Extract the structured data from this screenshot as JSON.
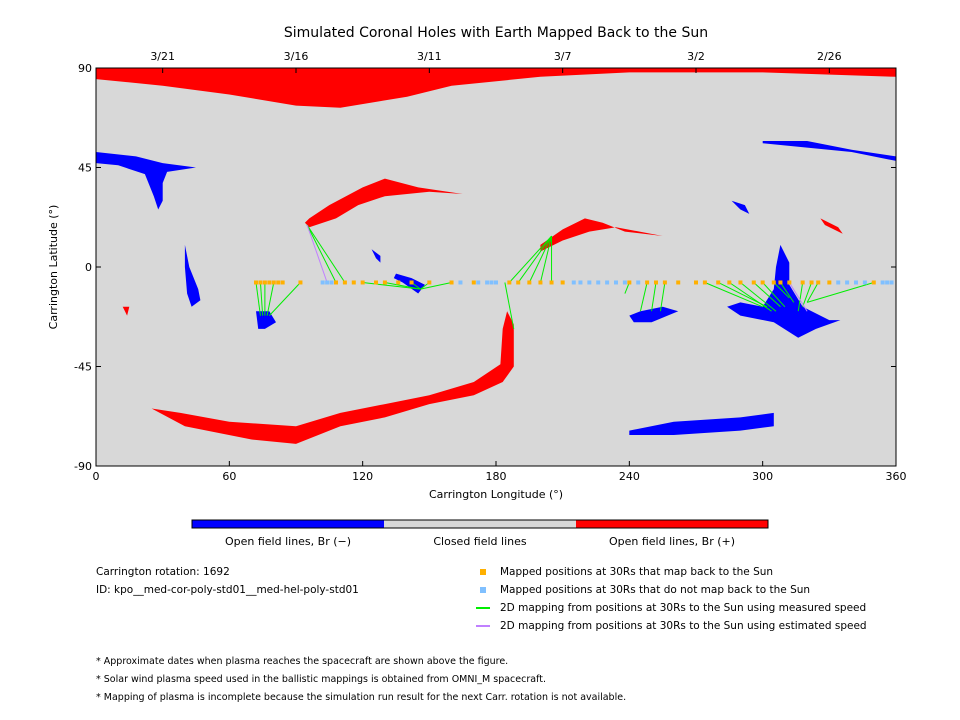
{
  "chart_data": {
    "type": "map",
    "title": "Simulated Coronal Holes with Earth Mapped Back to the Sun",
    "xlabel": "Carrington Longitude (°)",
    "ylabel": "Carrington Latitude (°)",
    "xlim": [
      0,
      360
    ],
    "ylim": [
      -90,
      90
    ],
    "xticks": [
      0,
      60,
      120,
      180,
      240,
      300,
      360
    ],
    "yticks": [
      -90,
      -45,
      0,
      45,
      90
    ],
    "top_axis_dates": [
      {
        "label": "3/21",
        "lon": 30
      },
      {
        "label": "3/16",
        "lon": 90
      },
      {
        "label": "3/11",
        "lon": 150
      },
      {
        "label": "3/7",
        "lon": 210
      },
      {
        "label": "3/2",
        "lon": 270
      },
      {
        "label": "2/26",
        "lon": 330
      }
    ],
    "background_color": "#d8d8d8",
    "colors": {
      "negative": "#0000ff",
      "positive": "#ff0000",
      "closed": "#d8d8d8",
      "mapped": "#ffb000",
      "unmapped": "#80c0ff",
      "measured": "#00ee00",
      "estimated": "#c080ff"
    },
    "regions": [
      {
        "polarity": "positive",
        "points": [
          [
            0,
            90
          ],
          [
            360,
            90
          ],
          [
            360,
            86
          ],
          [
            300,
            88
          ],
          [
            240,
            88
          ],
          [
            200,
            86
          ],
          [
            160,
            82
          ],
          [
            140,
            77
          ],
          [
            110,
            72
          ],
          [
            90,
            73
          ],
          [
            60,
            78
          ],
          [
            30,
            82
          ],
          [
            0,
            85
          ]
        ]
      },
      {
        "polarity": "negative",
        "points": [
          [
            0,
            52
          ],
          [
            18,
            50
          ],
          [
            30,
            47
          ],
          [
            45,
            45
          ],
          [
            32,
            43
          ],
          [
            30,
            38
          ],
          [
            30,
            30
          ],
          [
            28,
            26
          ],
          [
            26,
            32
          ],
          [
            22,
            42
          ],
          [
            10,
            46
          ],
          [
            0,
            47
          ]
        ]
      },
      {
        "polarity": "negative",
        "points": [
          [
            40,
            10
          ],
          [
            42,
            0
          ],
          [
            46,
            -10
          ],
          [
            47,
            -15
          ],
          [
            43,
            -18
          ],
          [
            41,
            -12
          ],
          [
            40,
            0
          ]
        ]
      },
      {
        "polarity": "negative",
        "points": [
          [
            72,
            -20
          ],
          [
            78,
            -20
          ],
          [
            81,
            -25
          ],
          [
            76,
            -28
          ],
          [
            73,
            -28
          ]
        ]
      },
      {
        "polarity": "positive",
        "points": [
          [
            12,
            -18
          ],
          [
            15,
            -18
          ],
          [
            14,
            -22
          ]
        ]
      },
      {
        "polarity": "positive",
        "points": [
          [
            96,
            22
          ],
          [
            105,
            28
          ],
          [
            120,
            36
          ],
          [
            130,
            40
          ],
          [
            145,
            36
          ],
          [
            165,
            33
          ],
          [
            150,
            34
          ],
          [
            130,
            32
          ],
          [
            118,
            28
          ],
          [
            108,
            22
          ],
          [
            96,
            18
          ],
          [
            94,
            20
          ]
        ]
      },
      {
        "polarity": "negative",
        "points": [
          [
            124,
            8
          ],
          [
            128,
            5
          ],
          [
            128,
            2
          ],
          [
            126,
            4
          ]
        ]
      },
      {
        "polarity": "negative",
        "points": [
          [
            135,
            -3
          ],
          [
            142,
            -5
          ],
          [
            148,
            -8
          ],
          [
            145,
            -12
          ],
          [
            138,
            -7
          ],
          [
            134,
            -5
          ]
        ]
      },
      {
        "polarity": "positive",
        "points": [
          [
            200,
            10
          ],
          [
            210,
            17
          ],
          [
            220,
            22
          ],
          [
            228,
            20
          ],
          [
            238,
            16
          ],
          [
            255,
            14
          ],
          [
            234,
            18
          ],
          [
            222,
            16
          ],
          [
            210,
            12
          ],
          [
            200,
            7
          ]
        ]
      },
      {
        "polarity": "positive",
        "points": [
          [
            185,
            -20
          ],
          [
            188,
            -26
          ],
          [
            188,
            -45
          ],
          [
            183,
            -52
          ],
          [
            170,
            -58
          ],
          [
            150,
            -62
          ],
          [
            130,
            -68
          ],
          [
            110,
            -72
          ],
          [
            90,
            -80
          ],
          [
            70,
            -78
          ],
          [
            40,
            -72
          ],
          [
            25,
            -64
          ],
          [
            38,
            -66
          ],
          [
            60,
            -70
          ],
          [
            90,
            -72
          ],
          [
            110,
            -66
          ],
          [
            130,
            -62
          ],
          [
            150,
            -58
          ],
          [
            170,
            -52
          ],
          [
            182,
            -44
          ],
          [
            183,
            -28
          ]
        ]
      },
      {
        "polarity": "negative",
        "points": [
          [
            240,
            -22
          ],
          [
            245,
            -20
          ],
          [
            255,
            -18
          ],
          [
            262,
            -20
          ],
          [
            250,
            -25
          ],
          [
            242,
            -25
          ]
        ]
      },
      {
        "polarity": "negative",
        "points": [
          [
            300,
            -18
          ],
          [
            305,
            -10
          ],
          [
            306,
            0
          ],
          [
            308,
            10
          ],
          [
            312,
            2
          ],
          [
            312,
            -8
          ],
          [
            318,
            -18
          ],
          [
            330,
            -24
          ],
          [
            335,
            -24
          ],
          [
            324,
            -28
          ],
          [
            316,
            -32
          ],
          [
            305,
            -25
          ],
          [
            290,
            -22
          ],
          [
            284,
            -18
          ],
          [
            290,
            -16
          ]
        ]
      },
      {
        "polarity": "negative",
        "points": [
          [
            240,
            -74
          ],
          [
            260,
            -70
          ],
          [
            290,
            -68
          ],
          [
            305,
            -66
          ],
          [
            305,
            -72
          ],
          [
            290,
            -74
          ],
          [
            260,
            -76
          ],
          [
            240,
            -76
          ]
        ]
      },
      {
        "polarity": "negative",
        "points": [
          [
            300,
            56
          ],
          [
            320,
            54
          ],
          [
            340,
            52
          ],
          [
            360,
            48
          ],
          [
            360,
            50
          ],
          [
            340,
            53
          ],
          [
            320,
            57
          ],
          [
            300,
            57
          ]
        ]
      },
      {
        "polarity": "negative",
        "points": [
          [
            286,
            30
          ],
          [
            292,
            28
          ],
          [
            294,
            24
          ],
          [
            290,
            26
          ]
        ]
      },
      {
        "polarity": "positive",
        "points": [
          [
            326,
            22
          ],
          [
            334,
            18
          ],
          [
            336,
            15
          ],
          [
            328,
            19
          ]
        ]
      }
    ],
    "mapped_lon": [
      72,
      74,
      76,
      78,
      80,
      82,
      84,
      92,
      108,
      112,
      116,
      120,
      126,
      130,
      136,
      142,
      150,
      160,
      170,
      186,
      190,
      195,
      200,
      205,
      210,
      240,
      248,
      252,
      256,
      262,
      270,
      274,
      280,
      285,
      290,
      296,
      300,
      305,
      308,
      312,
      318,
      322,
      325,
      330,
      350
    ],
    "unmapped_lon": [
      102,
      104,
      106,
      164,
      172,
      176,
      178,
      180,
      215,
      218,
      222,
      226,
      230,
      234,
      238,
      244,
      334,
      338,
      342,
      346,
      354,
      356,
      358
    ],
    "mapped_lat": -7,
    "flow_lines": [
      {
        "type": "measured",
        "from": [
          72,
          -7
        ],
        "to": [
          74,
          -22
        ]
      },
      {
        "type": "measured",
        "from": [
          74,
          -7
        ],
        "to": [
          75,
          -22
        ]
      },
      {
        "type": "measured",
        "from": [
          76,
          -7
        ],
        "to": [
          76,
          -22
        ]
      },
      {
        "type": "measured",
        "from": [
          80,
          -7
        ],
        "to": [
          77,
          -22
        ]
      },
      {
        "type": "measured",
        "from": [
          92,
          -7
        ],
        "to": [
          78,
          -22
        ]
      },
      {
        "type": "measured",
        "from": [
          108,
          -7
        ],
        "to": [
          95,
          19
        ]
      },
      {
        "type": "measured",
        "from": [
          112,
          -7
        ],
        "to": [
          95,
          19
        ]
      },
      {
        "type": "estimated",
        "from": [
          104,
          -7
        ],
        "to": [
          95,
          19
        ]
      },
      {
        "type": "measured",
        "from": [
          120,
          -7
        ],
        "to": [
          146,
          -10
        ]
      },
      {
        "type": "measured",
        "from": [
          130,
          -7
        ],
        "to": [
          146,
          -10
        ]
      },
      {
        "type": "measured",
        "from": [
          142,
          -7
        ],
        "to": [
          146,
          -10
        ]
      },
      {
        "type": "measured",
        "from": [
          150,
          -7
        ],
        "to": [
          146,
          -10
        ]
      },
      {
        "type": "measured",
        "from": [
          160,
          -7
        ],
        "to": [
          146,
          -10
        ]
      },
      {
        "type": "measured",
        "from": [
          186,
          -7
        ],
        "to": [
          205,
          14
        ]
      },
      {
        "type": "measured",
        "from": [
          190,
          -7
        ],
        "to": [
          205,
          14
        ]
      },
      {
        "type": "measured",
        "from": [
          195,
          -7
        ],
        "to": [
          205,
          14
        ]
      },
      {
        "type": "measured",
        "from": [
          200,
          -7
        ],
        "to": [
          205,
          14
        ]
      },
      {
        "type": "measured",
        "from": [
          205,
          -7
        ],
        "to": [
          205,
          14
        ]
      },
      {
        "type": "measured",
        "from": [
          184,
          -7
        ],
        "to": [
          188,
          -28
        ]
      },
      {
        "type": "measured",
        "from": [
          240,
          -7
        ],
        "to": [
          238,
          -12
        ]
      },
      {
        "type": "measured",
        "from": [
          248,
          -7
        ],
        "to": [
          245,
          -20
        ]
      },
      {
        "type": "measured",
        "from": [
          252,
          -7
        ],
        "to": [
          250,
          -20
        ]
      },
      {
        "type": "measured",
        "from": [
          256,
          -7
        ],
        "to": [
          254,
          -20
        ]
      },
      {
        "type": "measured",
        "from": [
          274,
          -7
        ],
        "to": [
          300,
          -18
        ]
      },
      {
        "type": "measured",
        "from": [
          280,
          -7
        ],
        "to": [
          302,
          -18
        ]
      },
      {
        "type": "measured",
        "from": [
          285,
          -7
        ],
        "to": [
          304,
          -20
        ]
      },
      {
        "type": "measured",
        "from": [
          290,
          -7
        ],
        "to": [
          306,
          -20
        ]
      },
      {
        "type": "measured",
        "from": [
          296,
          -7
        ],
        "to": [
          308,
          -18
        ]
      },
      {
        "type": "measured",
        "from": [
          300,
          -7
        ],
        "to": [
          310,
          -18
        ]
      },
      {
        "type": "measured",
        "from": [
          305,
          -7
        ],
        "to": [
          312,
          -14
        ]
      },
      {
        "type": "measured",
        "from": [
          308,
          -7
        ],
        "to": [
          314,
          -16
        ]
      },
      {
        "type": "measured",
        "from": [
          318,
          -7
        ],
        "to": [
          316,
          -20
        ]
      },
      {
        "type": "measured",
        "from": [
          322,
          -7
        ],
        "to": [
          318,
          -18
        ]
      },
      {
        "type": "measured",
        "from": [
          325,
          -7
        ],
        "to": [
          320,
          -16
        ]
      },
      {
        "type": "measured",
        "from": [
          350,
          -7
        ],
        "to": [
          320,
          -16
        ]
      },
      {
        "type": "estimated",
        "from": [
          312,
          -7
        ],
        "to": [
          320,
          -20
        ]
      }
    ]
  },
  "colorbar": {
    "labels": [
      "Open field lines, Br (−)",
      "Closed field lines",
      "Open field lines, Br (+)"
    ]
  },
  "info": {
    "rotation": "Carrington rotation: 1692",
    "id": "ID: kpo__med-cor-poly-std01__med-hel-poly-std01"
  },
  "legend": [
    {
      "label": "Mapped positions at 30Rs that map back to the Sun",
      "kind": "square",
      "color": "#ffb000"
    },
    {
      "label": "Mapped positions at 30Rs that do not map back to the Sun",
      "kind": "square",
      "color": "#80c0ff"
    },
    {
      "label": "2D mapping from positions at 30Rs to the Sun using measured speed",
      "kind": "line",
      "color": "#00ee00"
    },
    {
      "label": "2D mapping from positions at 30Rs to the Sun using estimated speed",
      "kind": "line",
      "color": "#c080ff"
    }
  ],
  "notes": [
    "* Approximate dates when plasma reaches the spacecraft are shown above the figure.",
    "* Solar wind plasma speed used in the ballistic mappings is obtained from OMNI_M spacecraft.",
    "* Mapping of plasma is incomplete because the simulation run result for the next Carr. rotation is not available."
  ]
}
